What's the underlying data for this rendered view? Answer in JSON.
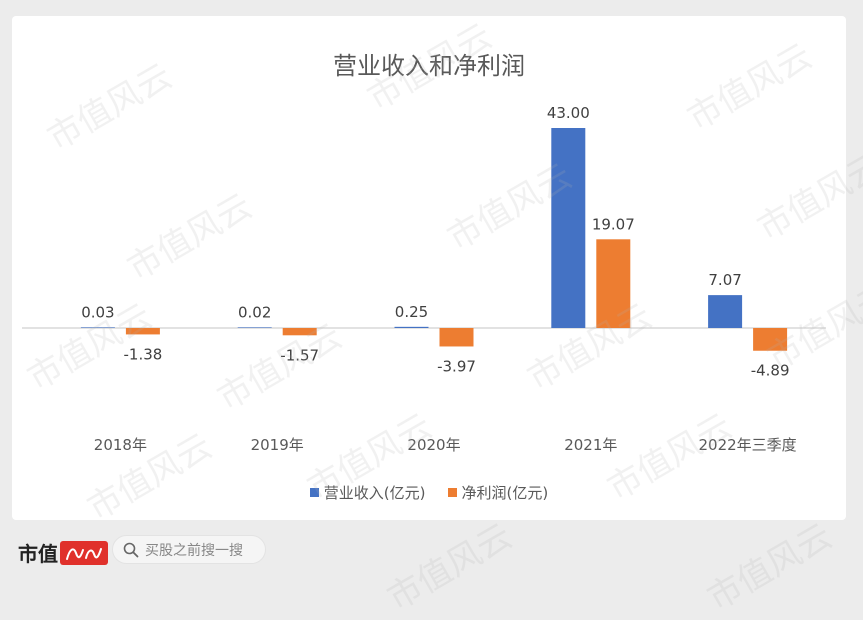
{
  "chart_data": {
    "type": "bar",
    "title": "营业收入和净利润",
    "categories": [
      "2018年",
      "2019年",
      "2020年",
      "2021年",
      "2022年三季度"
    ],
    "series": [
      {
        "name": "营业收入(亿元)",
        "color": "#4472c4",
        "values": [
          0.03,
          0.02,
          0.25,
          43.0,
          7.07
        ],
        "labels": [
          "0.03",
          "0.02",
          "0.25",
          "43.00",
          "7.07"
        ]
      },
      {
        "name": "净利润(亿元)",
        "color": "#ed7d31",
        "values": [
          -1.38,
          -1.57,
          -3.97,
          19.07,
          -4.89
        ],
        "labels": [
          "-1.38",
          "-1.57",
          "-3.97",
          "19.07",
          "-4.89"
        ]
      }
    ],
    "legend": "bottom",
    "grid": false
  },
  "footer": {
    "brand": "市值",
    "search_placeholder": "买股之前搜一搜"
  },
  "watermark": "市值风云",
  "icons": {
    "search": "search-icon",
    "logo": "brand-seal-icon"
  }
}
